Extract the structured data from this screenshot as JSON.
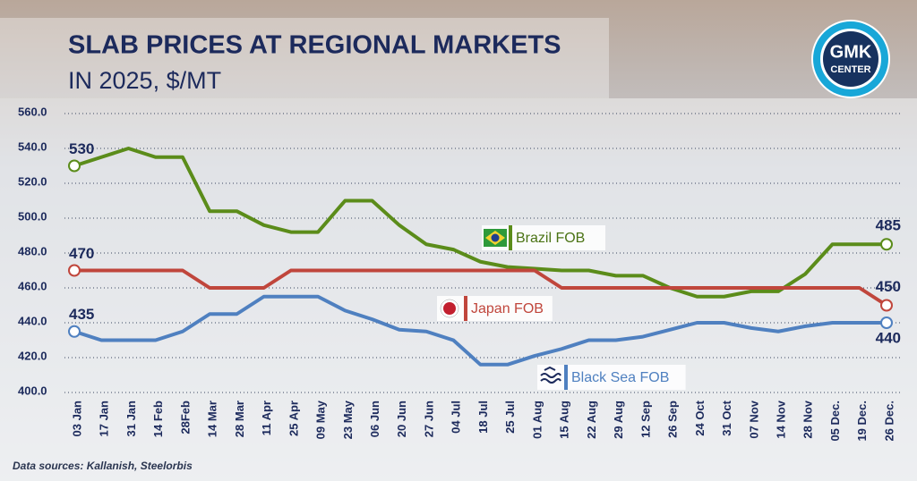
{
  "chart_data": {
    "type": "line",
    "title": "SLAB PRICES AT REGIONAL MARKETS",
    "subtitle": "IN 2025, $/MT",
    "source": "Data sources: Kallanish, Steelorbis",
    "logo": [
      "GMK",
      "CENTER"
    ],
    "categories": [
      "03 Jan",
      "17 Jan",
      "31 Jan",
      "14 Feb",
      "28Feb",
      "14 Mar",
      "28 Mar",
      "11 Apr",
      "25 Apr",
      "09 May",
      "23 May",
      "06 Jun",
      "20 Jun",
      "27 Jun",
      "04 Jul",
      "18 Jul",
      "25 Jul",
      "01 Aug",
      "15 Aug",
      "22 Aug",
      "29 Aug",
      "12 Sep",
      "26 Sep",
      "24 Oct",
      "31 Oct",
      "07 Nov",
      "14 Nov",
      "28 Nov",
      "05 Dec.",
      "19 Dec.",
      "26 Dec."
    ],
    "series": [
      {
        "name": "Brazil FOB",
        "color": "#5b8c1a",
        "values": [
          530,
          535,
          540,
          535,
          535,
          504,
          504,
          496,
          492,
          492,
          510,
          510,
          496,
          485,
          482,
          475,
          472,
          471,
          470,
          470,
          467,
          467,
          460,
          455,
          455,
          458,
          458,
          468,
          485,
          485,
          485
        ]
      },
      {
        "name": "Japan FOB",
        "color": "#c0463c",
        "values": [
          470,
          470,
          470,
          470,
          470,
          460,
          460,
          460,
          470,
          470,
          470,
          470,
          470,
          470,
          470,
          470,
          470,
          470,
          460,
          460,
          460,
          460,
          460,
          460,
          460,
          460,
          460,
          460,
          460,
          460,
          450
        ]
      },
      {
        "name": "Black Sea FOB",
        "color": "#4f80c0",
        "values": [
          435,
          430,
          430,
          430,
          435,
          445,
          445,
          455,
          455,
          455,
          447,
          442,
          436,
          435,
          430,
          416,
          416,
          421,
          425,
          430,
          430,
          432,
          436,
          440,
          440,
          437,
          435,
          438,
          440,
          440,
          440
        ]
      }
    ],
    "ylim": [
      400,
      560
    ],
    "yticks": [
      {
        "value": 400,
        "label": "400.0"
      },
      {
        "value": 420,
        "label": "420.0"
      },
      {
        "value": 440,
        "label": "440.0"
      },
      {
        "value": 460,
        "label": "460.0"
      },
      {
        "value": 480,
        "label": "480.0"
      },
      {
        "value": 500,
        "label": "500.0"
      },
      {
        "value": 520,
        "label": "520.0"
      },
      {
        "value": 540,
        "label": "540.0"
      },
      {
        "value": 560,
        "label": "560.0"
      }
    ],
    "grid": true
  }
}
